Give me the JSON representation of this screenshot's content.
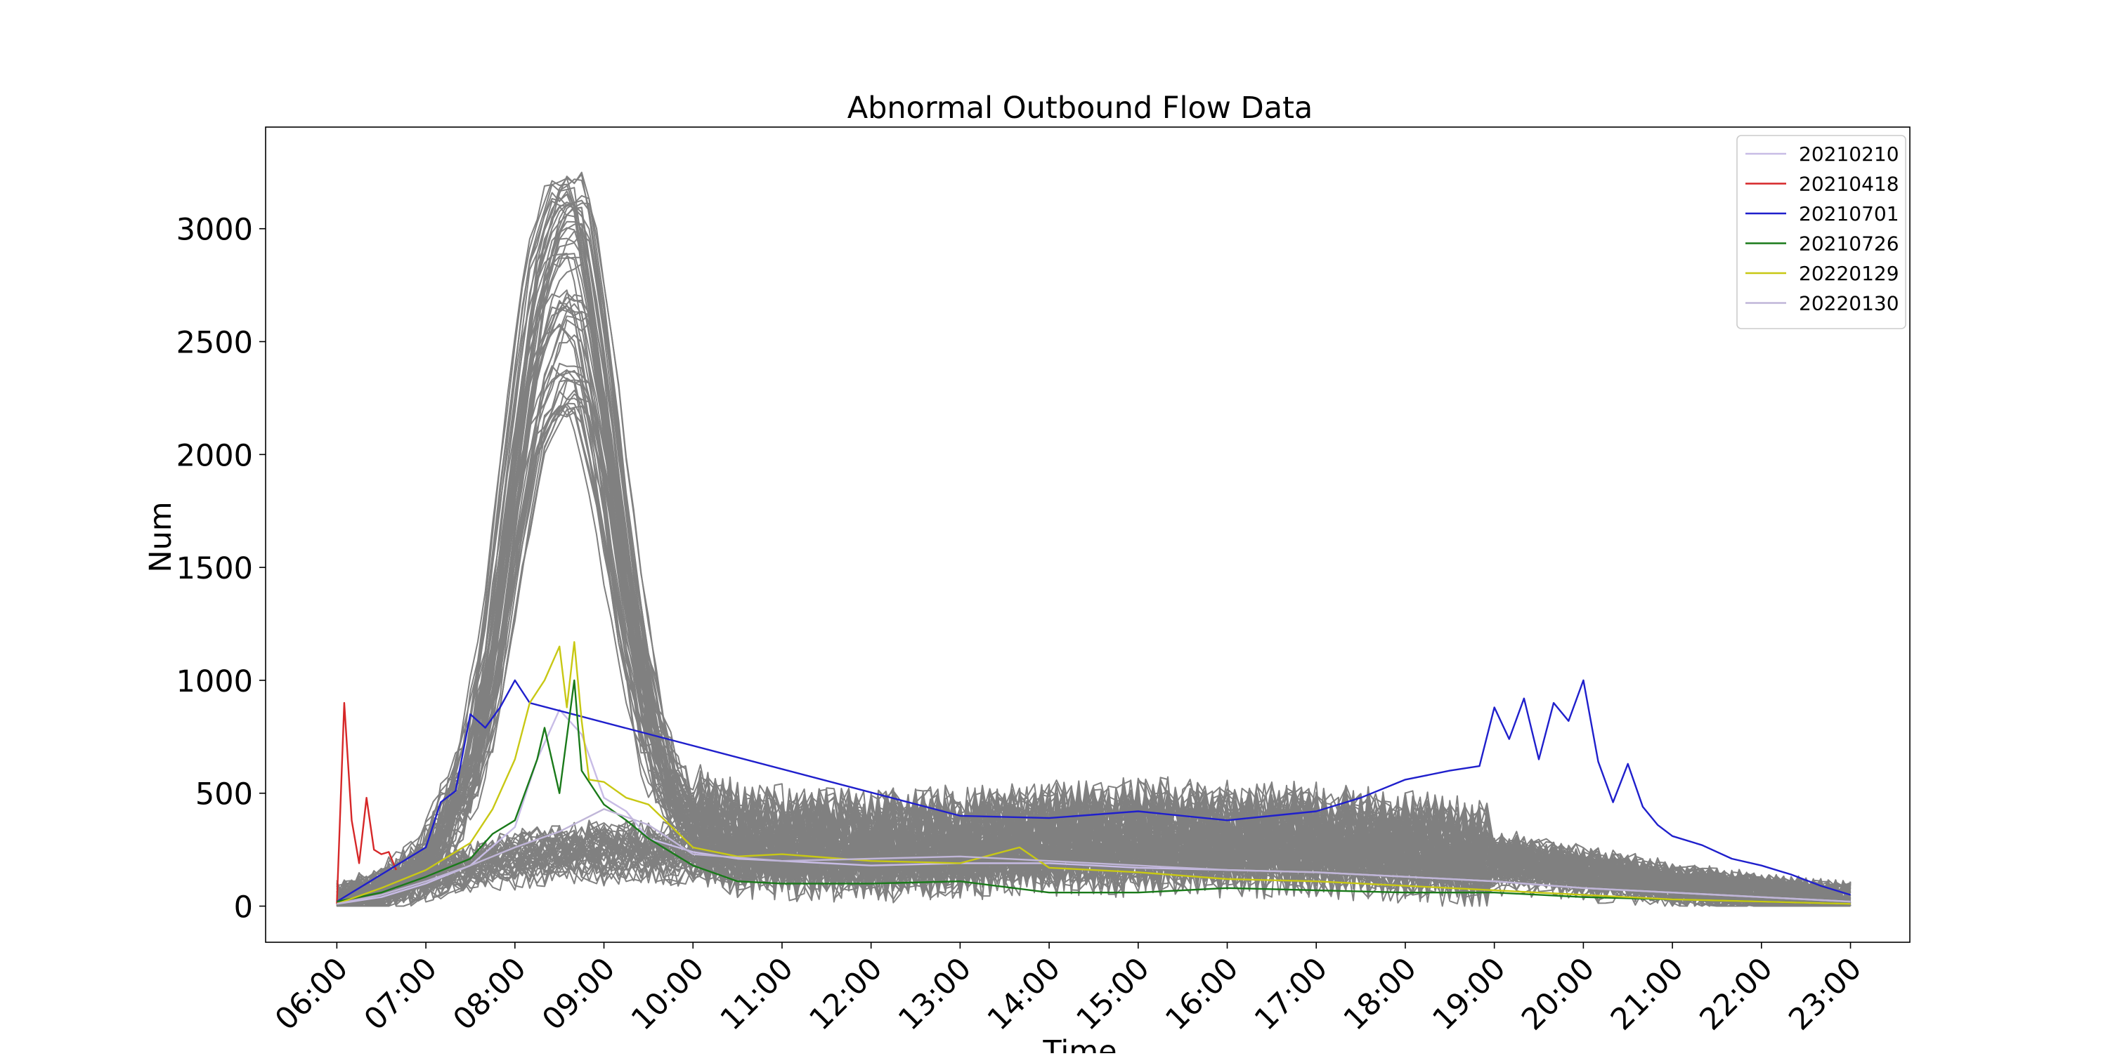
{
  "chart_data": {
    "type": "line",
    "title": "Abnormal Outbound Flow Data",
    "xlabel": "Time",
    "ylabel": "Num",
    "x_ticks": [
      "06:00",
      "07:00",
      "08:00",
      "09:00",
      "10:00",
      "11:00",
      "12:00",
      "13:00",
      "14:00",
      "15:00",
      "16:00",
      "17:00",
      "18:00",
      "19:00",
      "20:00",
      "21:00",
      "22:00",
      "23:00"
    ],
    "xlim": [
      "05:12",
      "23:40"
    ],
    "y_ticks": [
      0,
      500,
      1000,
      1500,
      2000,
      2500,
      3000
    ],
    "ylim": [
      -160,
      3450
    ],
    "grid": false,
    "legend_position": "top-right",
    "background_series": {
      "color": "#808080",
      "description_note": "",
      "typical_profile": {
        "x": [
          "06:00",
          "06:30",
          "07:00",
          "07:30",
          "07:45",
          "08:00",
          "08:15",
          "08:30",
          "08:45",
          "09:00",
          "09:15",
          "09:30",
          "09:45",
          "10:00",
          "10:30",
          "11:00",
          "12:00",
          "13:00",
          "14:00",
          "15:00",
          "16:00",
          "17:00",
          "18:00",
          "19:00",
          "20:00",
          "21:00",
          "22:00",
          "23:00"
        ],
        "peak_group": [
          20,
          80,
          200,
          600,
          1100,
          1900,
          2600,
          2900,
          2900,
          2300,
          1500,
          900,
          550,
          400,
          320,
          300,
          290,
          300,
          320,
          330,
          320,
          310,
          280,
          240,
          170,
          110,
          60,
          30
        ],
        "flat_group": [
          20,
          60,
          120,
          170,
          190,
          210,
          220,
          230,
          240,
          240,
          240,
          235,
          230,
          220,
          210,
          200,
          200,
          210,
          230,
          240,
          240,
          230,
          210,
          180,
          140,
          90,
          50,
          25
        ]
      },
      "max_peak": 3270
    },
    "series": [
      {
        "name": "20210210",
        "color": "#c8bce6",
        "x": [
          "06:00",
          "06:30",
          "07:00",
          "07:30",
          "08:00",
          "08:15",
          "08:30",
          "08:45",
          "09:00",
          "09:15",
          "09:30",
          "10:00",
          "10:30",
          "11:00",
          "12:00",
          "13:00",
          "14:00",
          "15:00",
          "16:00",
          "17:00",
          "18:00",
          "19:00",
          "20:00",
          "21:00",
          "22:00",
          "23:00"
        ],
        "values": [
          10,
          40,
          100,
          180,
          350,
          650,
          870,
          760,
          480,
          420,
          300,
          240,
          210,
          200,
          180,
          190,
          190,
          170,
          160,
          150,
          130,
          110,
          80,
          60,
          40,
          20
        ]
      },
      {
        "name": "20210418",
        "color": "#d62728",
        "x": [
          "06:00",
          "06:05",
          "06:10",
          "06:15",
          "06:20",
          "06:25",
          "06:30",
          "06:35",
          "06:40"
        ],
        "values": [
          10,
          900,
          380,
          190,
          480,
          250,
          230,
          240,
          160
        ]
      },
      {
        "name": "20210701",
        "color": "#1f1fcc",
        "x": [
          "06:00",
          "06:30",
          "07:00",
          "07:10",
          "07:20",
          "07:30",
          "07:40",
          "07:50",
          "08:00",
          "08:10",
          "13:00",
          "14:00",
          "15:00",
          "16:00",
          "17:00",
          "17:30",
          "18:00",
          "18:30",
          "18:50",
          "19:00",
          "19:10",
          "19:20",
          "19:30",
          "19:40",
          "19:50",
          "20:00",
          "20:10",
          "20:20",
          "20:30",
          "20:40",
          "20:50",
          "21:00",
          "21:20",
          "21:40",
          "22:00",
          "22:20",
          "22:40",
          "23:00"
        ],
        "values": [
          20,
          140,
          260,
          460,
          510,
          850,
          790,
          880,
          1000,
          900,
          400,
          390,
          420,
          380,
          420,
          480,
          560,
          600,
          620,
          880,
          740,
          920,
          650,
          900,
          820,
          1000,
          640,
          460,
          630,
          440,
          360,
          310,
          270,
          210,
          180,
          140,
          90,
          50
        ]
      },
      {
        "name": "20210726",
        "color": "#1a7a1a",
        "x": [
          "06:00",
          "06:30",
          "07:00",
          "07:30",
          "07:45",
          "08:00",
          "08:15",
          "08:20",
          "08:30",
          "08:40",
          "08:45",
          "09:00",
          "09:15",
          "09:30",
          "10:00",
          "10:30",
          "11:00",
          "12:00",
          "13:00",
          "14:00",
          "15:00",
          "16:00",
          "17:00",
          "18:00",
          "19:00",
          "20:00",
          "21:00",
          "22:00",
          "23:00"
        ],
        "values": [
          20,
          60,
          130,
          210,
          320,
          380,
          650,
          790,
          500,
          1000,
          600,
          450,
          380,
          300,
          180,
          110,
          100,
          100,
          110,
          60,
          60,
          80,
          70,
          60,
          60,
          40,
          30,
          20,
          10
        ]
      },
      {
        "name": "20220129",
        "color": "#c8c814",
        "x": [
          "06:00",
          "06:30",
          "07:00",
          "07:30",
          "07:45",
          "08:00",
          "08:10",
          "08:20",
          "08:30",
          "08:35",
          "08:40",
          "08:45",
          "08:50",
          "09:00",
          "09:15",
          "09:30",
          "10:00",
          "10:30",
          "11:00",
          "12:00",
          "13:00",
          "13:40",
          "14:00",
          "15:00",
          "16:00",
          "17:00",
          "18:00",
          "19:00",
          "20:00",
          "21:00",
          "22:00",
          "23:00"
        ],
        "values": [
          10,
          80,
          160,
          280,
          430,
          650,
          900,
          1000,
          1150,
          880,
          1170,
          820,
          560,
          550,
          480,
          450,
          260,
          220,
          230,
          200,
          190,
          260,
          170,
          150,
          120,
          110,
          90,
          70,
          50,
          30,
          20,
          10
        ]
      },
      {
        "name": "20220130",
        "color": "#c0b6d8",
        "x": [
          "06:00",
          "06:30",
          "07:00",
          "07:30",
          "08:00",
          "08:30",
          "09:00",
          "09:30",
          "10:00",
          "11:00",
          "12:00",
          "13:00",
          "14:00",
          "15:00",
          "16:00",
          "17:00",
          "18:00",
          "19:00",
          "20:00",
          "21:00",
          "22:00",
          "23:00"
        ],
        "values": [
          10,
          50,
          110,
          180,
          260,
          330,
          430,
          360,
          230,
          200,
          210,
          220,
          200,
          180,
          160,
          150,
          130,
          110,
          80,
          60,
          40,
          20
        ]
      }
    ]
  }
}
